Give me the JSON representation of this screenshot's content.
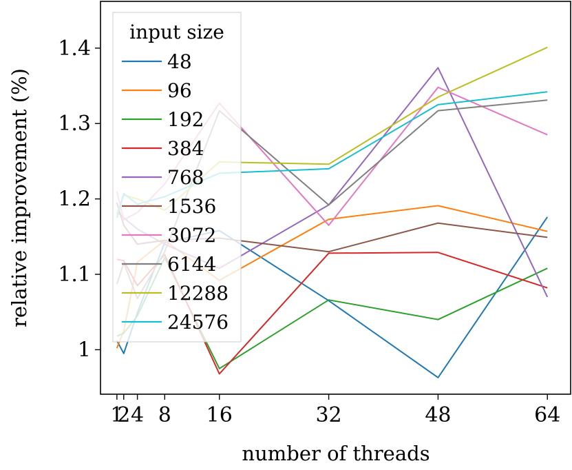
{
  "chart_data": {
    "type": "line",
    "xlabel": "number of threads",
    "ylabel": "relative improvement (%)",
    "x": [
      1,
      2,
      4,
      8,
      16,
      32,
      48,
      64
    ],
    "x_tick_labels": [
      "1",
      "2",
      "4",
      "8",
      "16",
      "32",
      "48",
      "64"
    ],
    "y_ticks": [
      1.0,
      1.1,
      1.2,
      1.3,
      1.4
    ],
    "y_tick_labels": [
      "1",
      "1.1",
      "1.2",
      "1.3",
      "1.4"
    ],
    "xlim": [
      -1.4,
      67.4
    ],
    "ylim": [
      0.941,
      1.462
    ],
    "grid": false,
    "legend": {
      "title": "input size",
      "placement": "top-left"
    },
    "series": [
      {
        "name": "48",
        "color": "#1f77b4",
        "values": [
          1.012,
          0.995,
          1.049,
          1.142,
          1.158,
          1.065,
          0.963,
          1.176
        ]
      },
      {
        "name": "96",
        "color": "#ff7f0e",
        "values": [
          1.002,
          1.025,
          1.116,
          1.145,
          1.092,
          1.173,
          1.191,
          1.157
        ]
      },
      {
        "name": "192",
        "color": "#2ca02c",
        "values": [
          1.018,
          1.022,
          1.045,
          1.122,
          0.975,
          1.066,
          1.04,
          1.108
        ]
      },
      {
        "name": "384",
        "color": "#d62728",
        "values": [
          1.12,
          1.118,
          1.085,
          1.126,
          0.968,
          1.128,
          1.129,
          1.082
        ]
      },
      {
        "name": "768",
        "color": "#9467bd",
        "values": [
          1.183,
          1.175,
          1.16,
          1.14,
          1.108,
          1.192,
          1.374,
          1.07
        ]
      },
      {
        "name": "1536",
        "color": "#8c564b",
        "values": [
          1.195,
          1.165,
          1.14,
          1.145,
          1.148,
          1.13,
          1.168,
          1.149
        ]
      },
      {
        "name": "3072",
        "color": "#e377c2",
        "values": [
          1.21,
          1.172,
          1.182,
          1.22,
          1.327,
          1.165,
          1.348,
          1.285
        ]
      },
      {
        "name": "6144",
        "color": "#7f7f7f",
        "values": [
          1.087,
          1.115,
          1.068,
          1.13,
          1.317,
          1.192,
          1.317,
          1.331
        ]
      },
      {
        "name": "12288",
        "color": "#bcbd22",
        "values": [
          1.18,
          1.205,
          1.2,
          1.185,
          1.249,
          1.246,
          1.335,
          1.401
        ]
      },
      {
        "name": "24576",
        "color": "#17becf",
        "values": [
          1.175,
          1.207,
          1.193,
          1.203,
          1.234,
          1.24,
          1.325,
          1.342
        ]
      }
    ]
  }
}
